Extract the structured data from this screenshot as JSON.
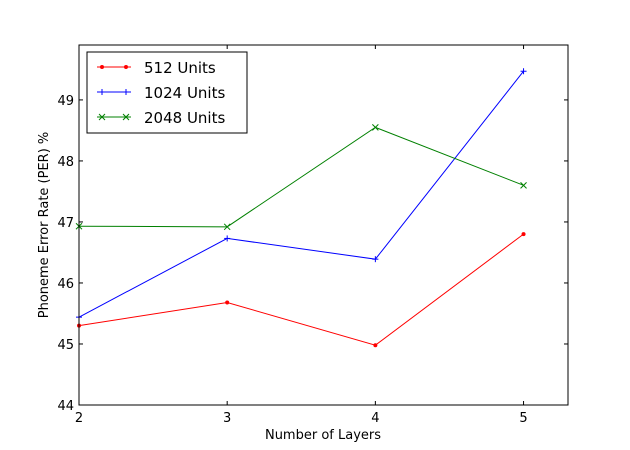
{
  "chart_data": {
    "type": "line",
    "title": "",
    "xlabel": "Number of Layers",
    "ylabel": "Phoneme Error Rate (PER) %",
    "x": [
      2,
      3,
      4,
      5
    ],
    "xlim": [
      2,
      5.3
    ],
    "ylim": [
      44,
      49.9
    ],
    "xticks": [
      "2",
      "3",
      "4",
      "5"
    ],
    "yticks": [
      "44",
      "45",
      "46",
      "47",
      "48",
      "49"
    ],
    "grid": false,
    "legend_position": "top-left",
    "series": [
      {
        "name": "512 Units",
        "color": "#ff0000",
        "marker": "dot",
        "values": [
          45.3,
          45.68,
          44.98,
          46.8
        ]
      },
      {
        "name": "1024 Units",
        "color": "#0000ff",
        "marker": "plus",
        "values": [
          45.44,
          46.73,
          46.39,
          49.47
        ]
      },
      {
        "name": "2048 Units",
        "color": "#008000",
        "marker": "x",
        "values": [
          46.93,
          46.92,
          48.55,
          47.6
        ]
      }
    ]
  }
}
